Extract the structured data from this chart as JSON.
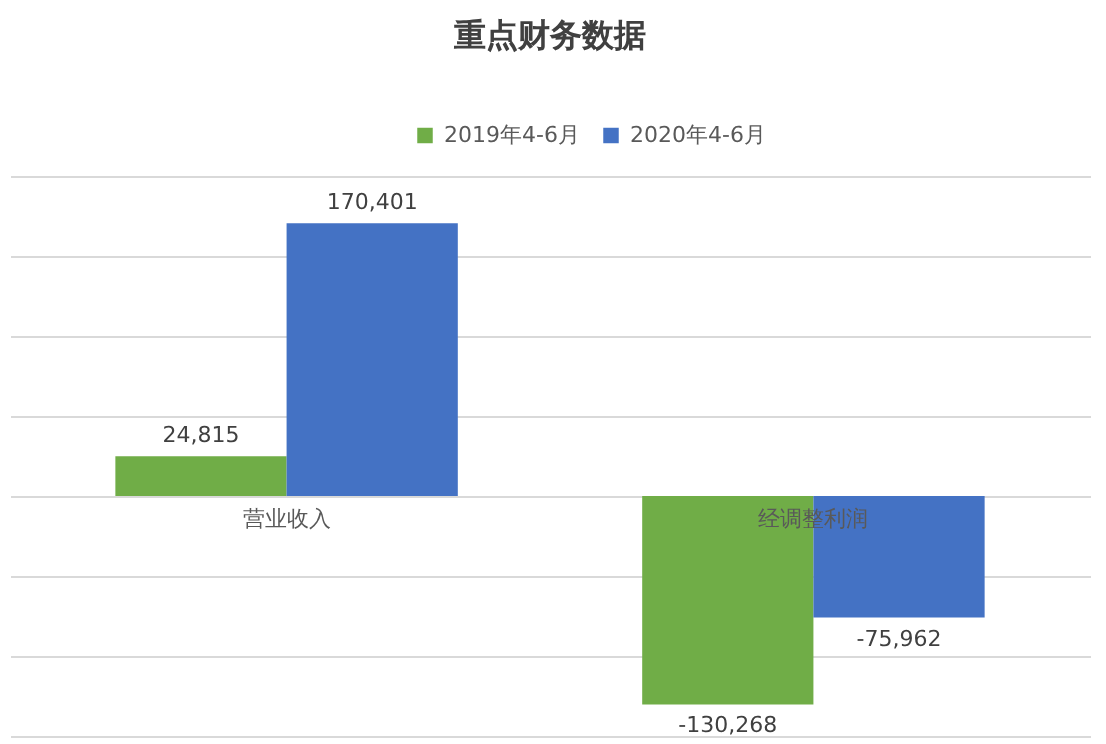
{
  "chart_data": {
    "type": "bar",
    "title": "重点财务数据",
    "categories": [
      "营业收入",
      "经调整利润"
    ],
    "series": [
      {
        "name": "2019年4-6月",
        "color": "#70ad47",
        "values": [
          24815,
          -130268
        ],
        "value_labels": [
          "24,815",
          "-130,268"
        ]
      },
      {
        "name": "2020年4-6月",
        "color": "#4472c4",
        "values": [
          170401,
          -75962
        ],
        "value_labels": [
          "170,401",
          "-75,962"
        ]
      }
    ],
    "grid": "y",
    "legend": "top",
    "tick_labels": false
  }
}
